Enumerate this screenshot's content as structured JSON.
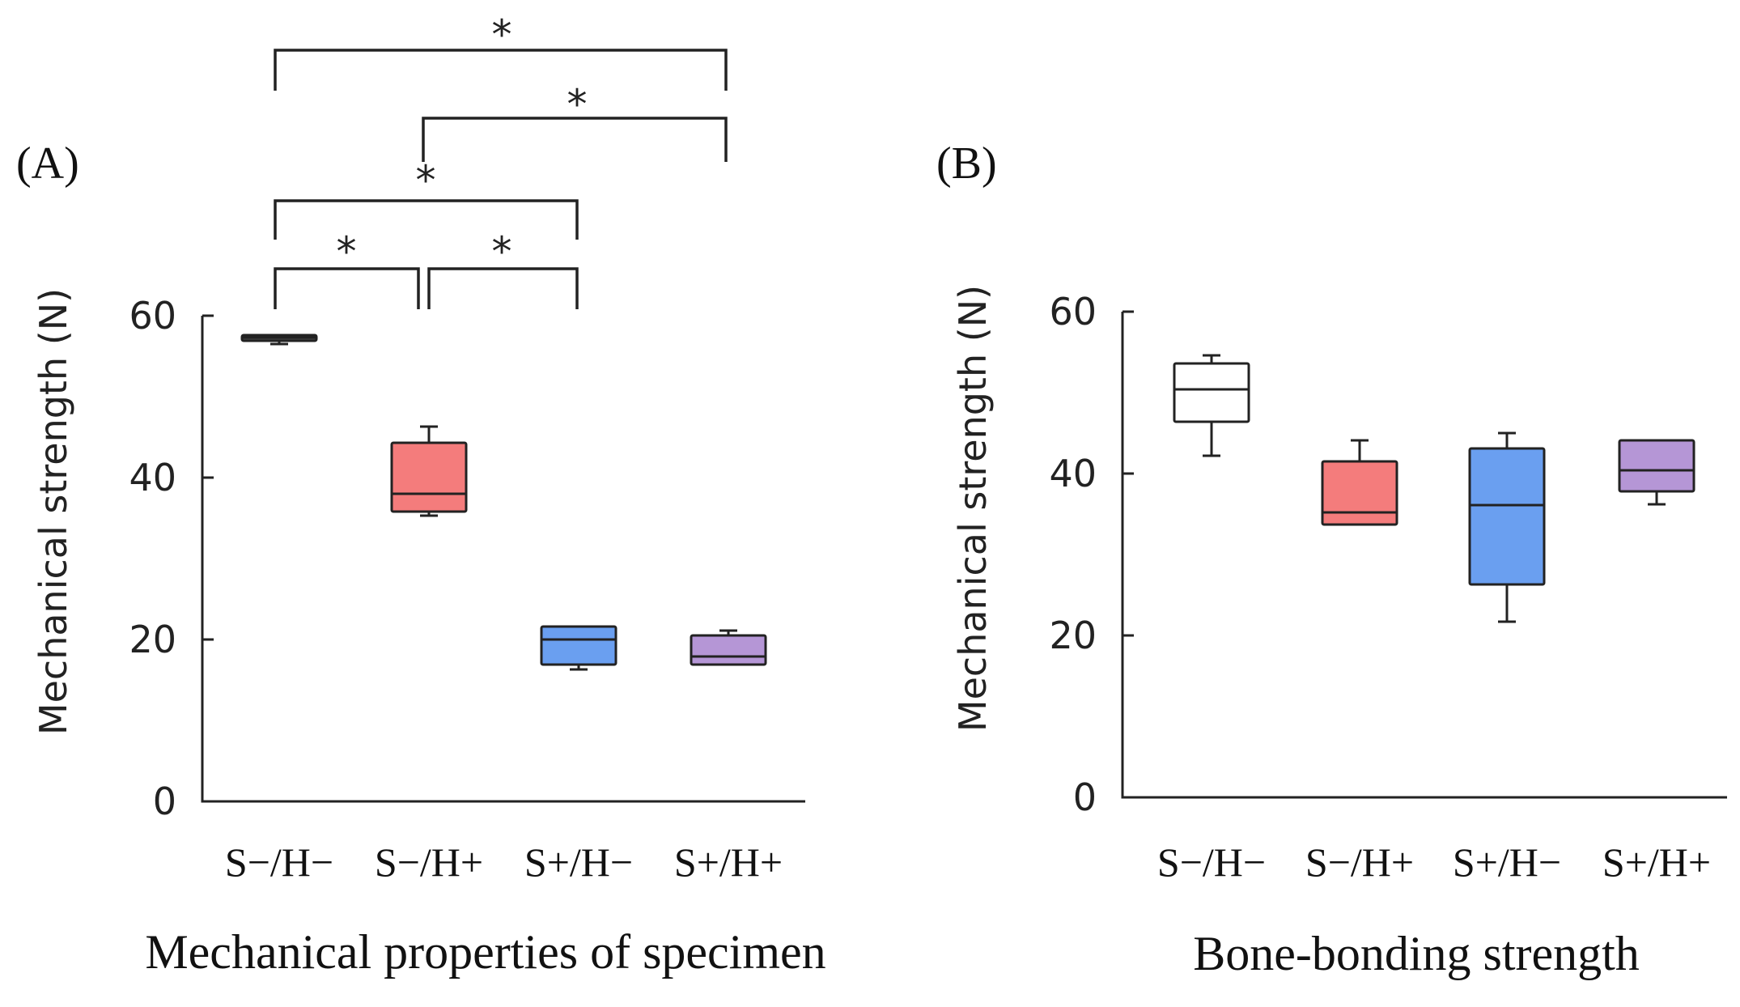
{
  "chart_data": [
    {
      "type": "box",
      "panel_label": "(A)",
      "title": "Mechanical properties of specimen",
      "ylabel": "Mechanical strength (N)",
      "ylim": [
        0,
        60
      ],
      "yticks": [
        "0",
        "20",
        "40",
        "60"
      ],
      "categories": [
        "S−/H−",
        "S−/H+",
        "S+/H−",
        "S+/H+"
      ],
      "boxes": [
        {
          "category": "S−/H−",
          "min": 56.5,
          "q1": 56.9,
          "median": 57.3,
          "q3": 57.6,
          "max": 57.6,
          "color": "#4a4a4a"
        },
        {
          "category": "S−/H+",
          "min": 35.3,
          "q1": 35.8,
          "median": 38.0,
          "q3": 44.3,
          "max": 46.3,
          "color": "#f47c7c"
        },
        {
          "category": "S+/H−",
          "min": 16.3,
          "q1": 16.9,
          "median": 20.0,
          "q3": 21.6,
          "max": 21.6,
          "color": "#6a9ff0"
        },
        {
          "category": "S+/H+",
          "min": 16.9,
          "q1": 16.9,
          "median": 17.9,
          "q3": 20.5,
          "max": 21.1,
          "color": "#b596d6"
        }
      ],
      "significance": [
        {
          "from": "S−/H−",
          "to": "S+/H+",
          "label": "*"
        },
        {
          "from": "S−/H+",
          "to": "S+/H+",
          "label": "*"
        },
        {
          "from": "S−/H−",
          "to": "S+/H−",
          "label": "*"
        },
        {
          "from": "S−/H−",
          "to": "S−/H+",
          "label": "*"
        },
        {
          "from": "S−/H+",
          "to": "S+/H−",
          "label": "*"
        }
      ]
    },
    {
      "type": "box",
      "panel_label": "(B)",
      "title": "Bone-bonding strength",
      "ylabel": "Mechanical strength (N)",
      "ylim": [
        0,
        60
      ],
      "yticks": [
        "0",
        "20",
        "40",
        "60"
      ],
      "categories": [
        "S−/H−",
        "S−/H+",
        "S+/H−",
        "S+/H+"
      ],
      "boxes": [
        {
          "category": "S−/H−",
          "min": 42.2,
          "q1": 46.4,
          "median": 50.4,
          "q3": 53.6,
          "max": 54.6,
          "color": "#ffffff"
        },
        {
          "category": "S−/H+",
          "min": 33.7,
          "q1": 33.7,
          "median": 35.2,
          "q3": 41.5,
          "max": 44.1,
          "color": "#f47c7c"
        },
        {
          "category": "S+/H−",
          "min": 21.7,
          "q1": 26.3,
          "median": 36.1,
          "q3": 43.1,
          "max": 45.0,
          "color": "#6a9ff0"
        },
        {
          "category": "S+/H+",
          "min": 36.2,
          "q1": 37.8,
          "median": 40.4,
          "q3": 44.1,
          "max": 44.1,
          "color": "#b596d6"
        }
      ],
      "significance": []
    }
  ]
}
